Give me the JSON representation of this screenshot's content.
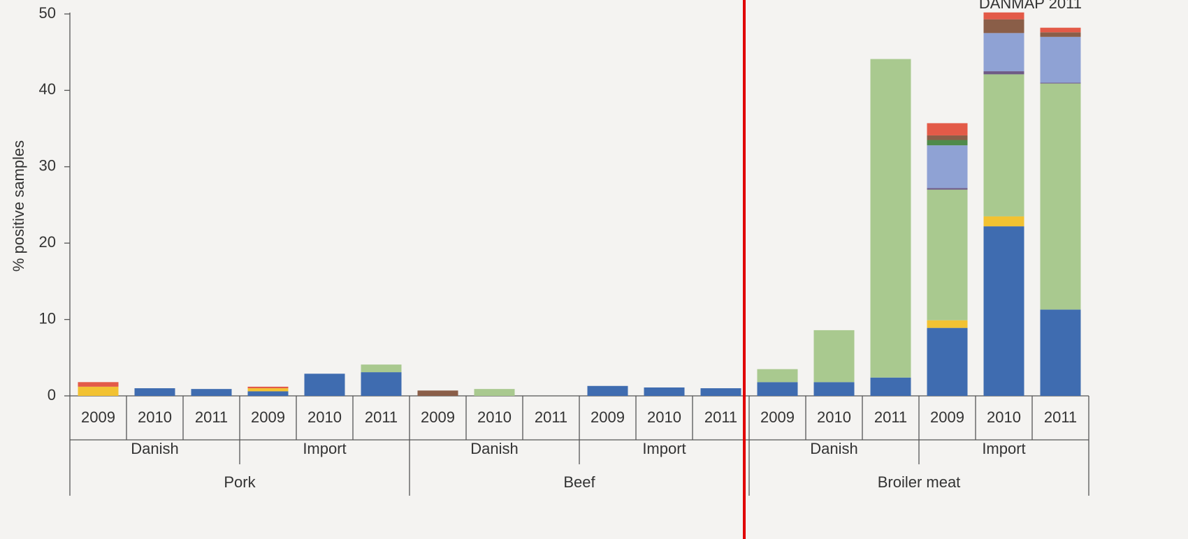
{
  "chart_data": {
    "type": "stacked_bar",
    "title": "DANMAP 2011",
    "y_label": "% positive samples",
    "categories": [
      "2009",
      "2010",
      "2011",
      "2009",
      "2010",
      "2011",
      "2009",
      "2010",
      "2011",
      "2009",
      "2010",
      "2011",
      "2009",
      "2010",
      "2011",
      "2009",
      "2010",
      "2011"
    ],
    "origin_labels": [
      "Danish",
      "Import",
      "Danish",
      "Import",
      "Danish",
      "Import"
    ],
    "meat_labels": [
      "Pork",
      "Beef",
      "Broiler meat"
    ],
    "series": [
      {
        "color": "#3f6cb0",
        "values": [
          0,
          1.0,
          0.9,
          0.6,
          2.9,
          3.1,
          0,
          0,
          0,
          1.3,
          1.1,
          1.0,
          1.8,
          1.8,
          2.4,
          8.9,
          22.2,
          11.3
        ]
      },
      {
        "color": "#f2c232",
        "values": [
          1.2,
          0,
          0,
          0.4,
          0,
          0,
          0,
          0,
          0,
          0,
          0,
          0,
          0,
          0,
          0,
          1.0,
          1.3,
          0
        ]
      },
      {
        "color": "#a9c98f",
        "values": [
          0,
          0,
          0,
          0,
          0,
          1.0,
          0,
          0.9,
          0,
          0,
          0,
          0,
          1.7,
          6.8,
          41.7,
          17.1,
          18.6,
          29.6
        ]
      },
      {
        "color": "#6e5a86",
        "values": [
          0,
          0,
          0,
          0,
          0,
          0,
          0,
          0,
          0,
          0,
          0,
          0,
          0,
          0,
          0,
          0.2,
          0.4,
          0.1
        ]
      },
      {
        "color": "#8fa2d4",
        "values": [
          0,
          0,
          0,
          0,
          0,
          0,
          0,
          0,
          0,
          0,
          0,
          0,
          0,
          0,
          0,
          5.6,
          5.0,
          6.0
        ]
      },
      {
        "color": "#4f8a4a",
        "values": [
          0,
          0,
          0,
          0,
          0,
          0,
          0,
          0,
          0,
          0,
          0,
          0,
          0,
          0,
          0,
          0.7,
          0,
          0
        ]
      },
      {
        "color": "#8a5e48",
        "values": [
          0,
          0,
          0,
          0,
          0,
          0,
          0.7,
          0,
          0,
          0,
          0,
          0,
          0,
          0,
          0,
          0.6,
          1.8,
          0.6
        ]
      },
      {
        "color": "#e35a48",
        "values": [
          0.6,
          0,
          0,
          0.2,
          0,
          0,
          0,
          0,
          0,
          0,
          0,
          0,
          0,
          0,
          0,
          1.6,
          0.9,
          0.6
        ]
      }
    ],
    "ylim": [
      0,
      50
    ],
    "yticks": [
      0,
      10,
      20,
      30,
      40,
      50
    ],
    "grid": false
  }
}
